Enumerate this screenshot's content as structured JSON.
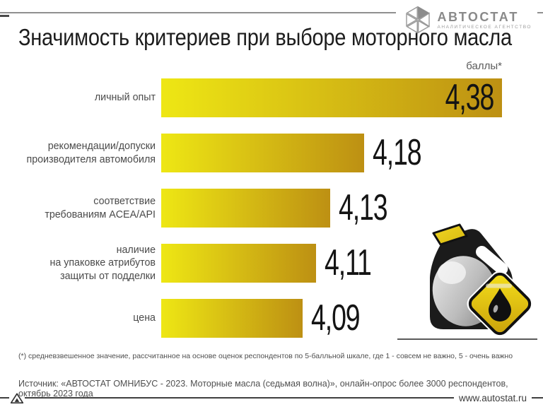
{
  "logo": {
    "name": "АВТОСТАТ",
    "subtitle": "АНАЛИТИЧЕСКОЕ АГЕНТСТВО"
  },
  "header": {
    "title": "Значимость критериев при выборе моторного масла",
    "units_label": "баллы*"
  },
  "chart_data": {
    "type": "bar",
    "orientation": "horizontal",
    "title": "Значимость критериев при выборе моторного масла",
    "units": "баллы*",
    "categories": [
      "личный опыт",
      "рекомендации/допуски производителя автомобиля",
      "соответствие требованиям ACEA/API",
      "наличие на упаковке атрибутов защиты от подделки",
      "цена"
    ],
    "categories_display": [
      "личный опыт",
      "рекомендации/допуски\nпроизводителя автомобиля",
      "соответствие\nтребованиям ACEA/API",
      "наличие\nна упаковке атрибутов\nзащиты от подделки",
      "цена"
    ],
    "values": [
      4.38,
      4.18,
      4.13,
      4.11,
      4.09
    ],
    "value_labels": [
      "4,38",
      "4,18",
      "4,13",
      "4,11",
      "4,09"
    ],
    "scale_note": "5-балльная шкала, 1 - совсем не важно, 5 - очень важно",
    "bar_gradient": [
      "#eee714",
      "#bd9013"
    ],
    "grid": false,
    "legend": false,
    "visual_axis_min": 3.885,
    "visual_scale": 974
  },
  "footnote": "(*) средневзвешенное значение, рассчитанное на основе оценок респондентов по 5-балльной шкале, где 1 - совсем не важно, 5 - очень важно",
  "source": "Источник: «АВТОСТАТ ОМНИБУС - 2023. Моторные масла (седьмая волна)», онлайн-опрос более 3000 респондентов, октябрь 2023 года",
  "website": "www.autostat.ru",
  "illustration": "oil-canister-with-drop-badge"
}
